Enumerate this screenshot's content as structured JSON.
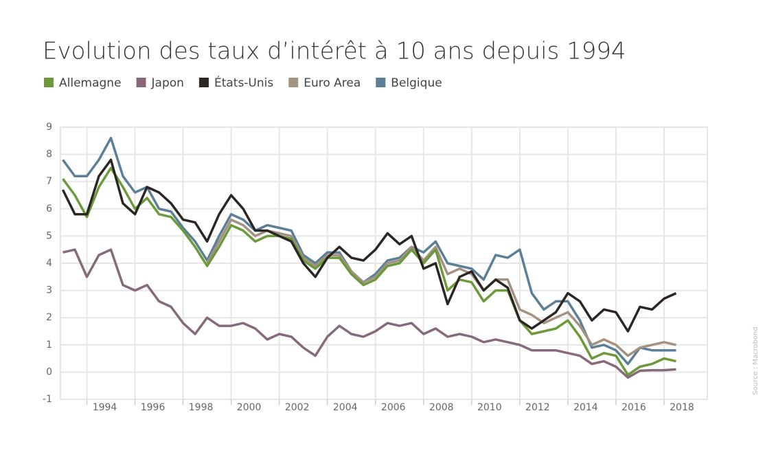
{
  "chart_data": {
    "type": "line",
    "title": "Evolution des taux d’intérêt à 10 ans depuis 1994",
    "source": "Source : Macrobond",
    "legend": "top-left",
    "grid": true,
    "x": [
      1993.0,
      1993.5,
      1994.0,
      1994.5,
      1995.0,
      1995.5,
      1996.0,
      1996.5,
      1997.0,
      1997.5,
      1998.0,
      1998.5,
      1999.0,
      1999.5,
      2000.0,
      2000.5,
      2001.0,
      2001.5,
      2002.0,
      2002.5,
      2003.0,
      2003.5,
      2004.0,
      2004.5,
      2005.0,
      2005.5,
      2006.0,
      2006.5,
      2007.0,
      2007.5,
      2008.0,
      2008.5,
      2009.0,
      2009.5,
      2010.0,
      2010.5,
      2011.0,
      2011.5,
      2012.0,
      2012.5,
      2013.0,
      2013.5,
      2014.0,
      2014.5,
      2015.0,
      2015.5,
      2016.0,
      2016.5,
      2017.0,
      2017.5,
      2018.0,
      2018.5
    ],
    "series": [
      {
        "name": "Allemagne",
        "color": "#6a9a3a",
        "values": [
          7.1,
          6.5,
          5.7,
          6.8,
          7.5,
          6.8,
          6.0,
          6.4,
          5.8,
          5.7,
          5.2,
          4.6,
          3.9,
          4.6,
          5.4,
          5.2,
          4.8,
          5.0,
          5.0,
          4.9,
          4.1,
          3.8,
          4.2,
          4.2,
          3.6,
          3.2,
          3.4,
          3.9,
          4.0,
          4.5,
          4.0,
          4.5,
          3.0,
          3.4,
          3.3,
          2.6,
          3.0,
          3.0,
          1.9,
          1.4,
          1.5,
          1.6,
          1.9,
          1.3,
          0.5,
          0.7,
          0.6,
          -0.1,
          0.2,
          0.3,
          0.5,
          0.4
        ]
      },
      {
        "name": "Japon",
        "color": "#866a7c",
        "values": [
          4.4,
          4.5,
          3.5,
          4.3,
          4.5,
          3.2,
          3.0,
          3.2,
          2.6,
          2.4,
          1.8,
          1.4,
          2.0,
          1.7,
          1.7,
          1.8,
          1.6,
          1.2,
          1.4,
          1.3,
          0.9,
          0.6,
          1.3,
          1.7,
          1.4,
          1.3,
          1.5,
          1.8,
          1.7,
          1.8,
          1.4,
          1.6,
          1.3,
          1.4,
          1.3,
          1.1,
          1.2,
          1.1,
          1.0,
          0.8,
          0.8,
          0.8,
          0.7,
          0.6,
          0.3,
          0.4,
          0.2,
          -0.2,
          0.05,
          0.07,
          0.07,
          0.1
        ]
      },
      {
        "name": "États-Unis",
        "color": "#2b2624",
        "values": [
          6.7,
          5.8,
          5.8,
          7.2,
          7.8,
          6.2,
          5.8,
          6.8,
          6.6,
          6.2,
          5.6,
          5.5,
          4.8,
          5.8,
          6.5,
          6.0,
          5.2,
          5.2,
          5.0,
          4.8,
          4.0,
          3.5,
          4.2,
          4.6,
          4.2,
          4.1,
          4.5,
          5.1,
          4.7,
          5.0,
          3.8,
          4.0,
          2.5,
          3.5,
          3.7,
          3.0,
          3.4,
          3.1,
          1.9,
          1.6,
          1.9,
          2.2,
          2.9,
          2.6,
          1.9,
          2.3,
          2.2,
          1.5,
          2.4,
          2.3,
          2.7,
          2.9
        ]
      },
      {
        "name": "Euro Area",
        "color": "#a39282",
        "values": [
          null,
          null,
          null,
          null,
          null,
          null,
          null,
          null,
          null,
          null,
          null,
          null,
          4.0,
          4.8,
          5.6,
          5.4,
          5.0,
          5.2,
          5.1,
          5.0,
          4.2,
          3.9,
          4.3,
          4.3,
          3.7,
          3.3,
          3.5,
          4.0,
          4.1,
          4.6,
          4.1,
          4.6,
          3.6,
          3.8,
          3.6,
          3.0,
          3.4,
          3.4,
          2.3,
          2.1,
          1.8,
          2.0,
          2.2,
          1.7,
          1.0,
          1.2,
          1.0,
          0.6,
          0.9,
          1.0,
          1.1,
          1.0
        ]
      },
      {
        "name": "Belgique",
        "color": "#5b7f96",
        "values": [
          7.8,
          7.2,
          7.2,
          7.8,
          8.6,
          7.2,
          6.6,
          6.8,
          6.0,
          5.9,
          5.3,
          4.8,
          4.1,
          5.0,
          5.8,
          5.6,
          5.2,
          5.4,
          5.3,
          5.2,
          4.3,
          4.0,
          4.4,
          4.4,
          3.7,
          3.3,
          3.6,
          4.1,
          4.2,
          4.6,
          4.4,
          4.8,
          4.0,
          3.9,
          3.8,
          3.4,
          4.3,
          4.2,
          4.5,
          2.9,
          2.3,
          2.6,
          2.6,
          1.9,
          0.9,
          1.0,
          0.8,
          0.3,
          0.9,
          0.8,
          0.8,
          0.8
        ]
      }
    ],
    "xlim": [
      1992.9,
      2019.8
    ],
    "xticks": [
      1994,
      1996,
      1998,
      2000,
      2002,
      2004,
      2006,
      2008,
      2010,
      2012,
      2014,
      2016,
      2018
    ],
    "ylim": [
      -1,
      9
    ],
    "yticks": [
      -1,
      0,
      1,
      2,
      3,
      4,
      5,
      6,
      7,
      8,
      9
    ]
  }
}
